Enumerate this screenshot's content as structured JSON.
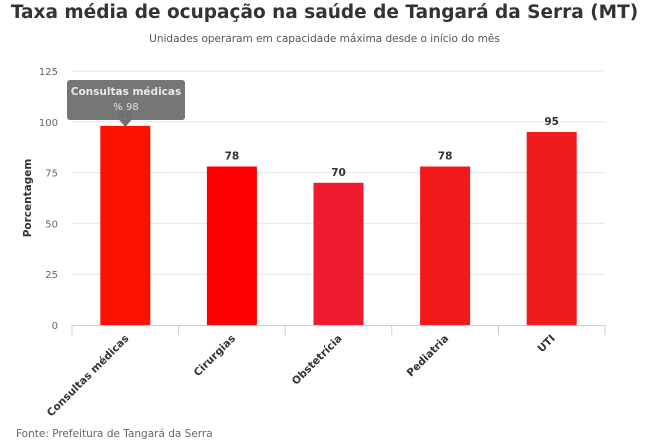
{
  "chart_data": {
    "type": "bar",
    "title": "Taxa média de ocupação na saúde de Tangará da Serra (MT)",
    "subtitle": "Unidades operaram em capacidade máxima desde o início do mês",
    "xlabel": "",
    "ylabel": "Porcentagem",
    "ylim": [
      0,
      125
    ],
    "yticks": [
      0,
      25,
      50,
      75,
      100,
      125
    ],
    "grid": true,
    "categories": [
      "Consultas médicas",
      "Cirurgias",
      "Obstetrícia",
      "Pediatria",
      "UTI"
    ],
    "values": [
      98,
      78,
      70,
      78,
      95
    ],
    "colors": [
      "#ff1100",
      "#fe0000",
      "#ee1c2e",
      "#f01a1a",
      "#ee1c1c"
    ],
    "tooltip": {
      "title": "Consultas médicas",
      "value": "% 98"
    },
    "source": "Fonte: Prefeitura de Tangará da Serra"
  }
}
